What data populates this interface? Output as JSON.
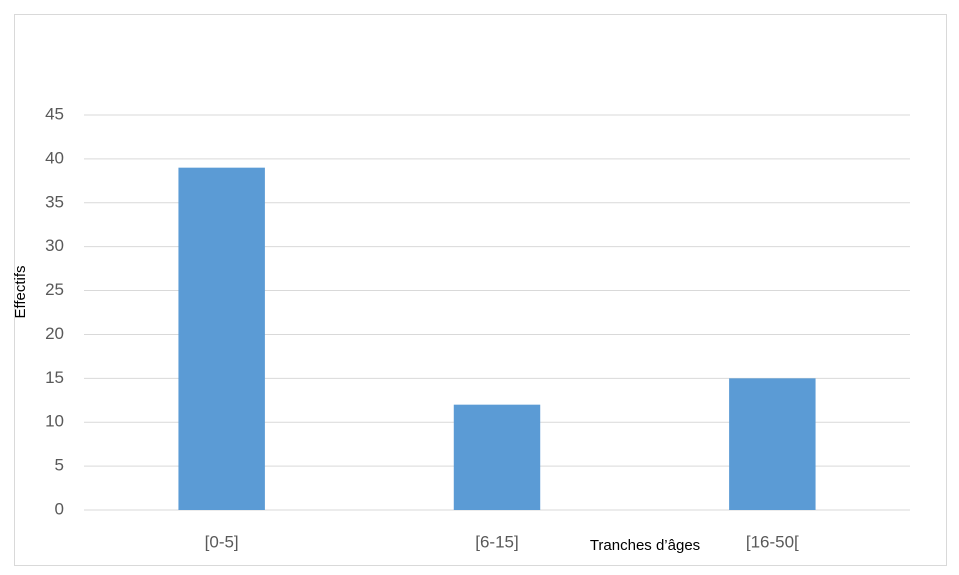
{
  "chart_data": {
    "type": "bar",
    "x_label": "Tranches d’âges",
    "y_label": "Effectifs",
    "categories": [
      "[0-5]",
      "[6-15]",
      "[16-50["
    ],
    "values": [
      39,
      12,
      15
    ],
    "color": "#5b9bd5",
    "ylim": [
      0,
      45
    ],
    "yticks": [
      0,
      5,
      10,
      15,
      20,
      25,
      30,
      35,
      40,
      45
    ],
    "grid": true
  }
}
